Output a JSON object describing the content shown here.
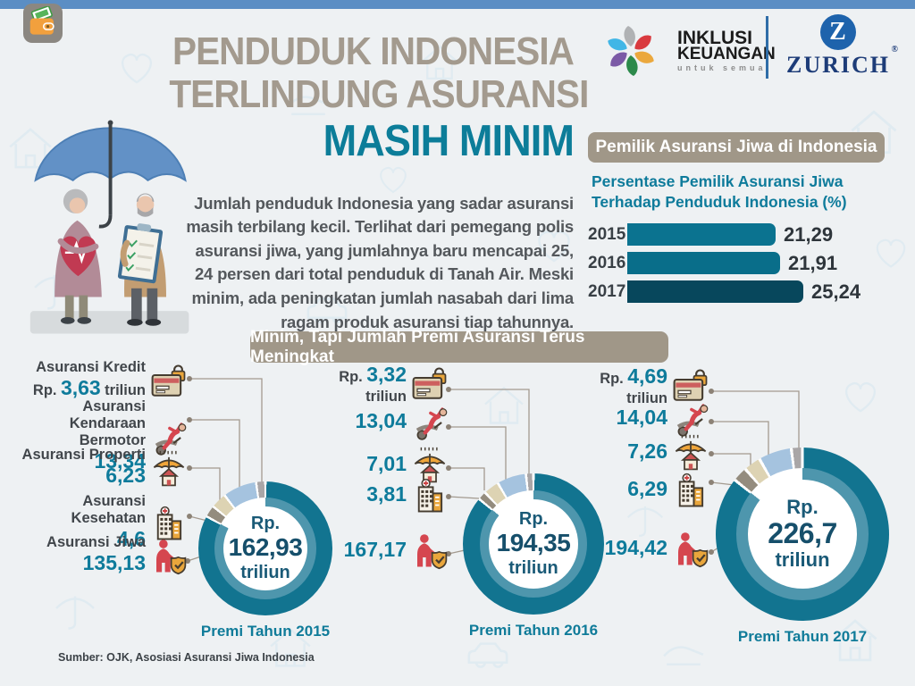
{
  "header": {
    "title_line1": "PENDUDUK INDONESIA",
    "title_line2": "TERLINDUNG ASURANSI",
    "title_line3": "MASIH MINIM",
    "intro": "Jumlah penduduk Indonesia yang sadar asuransi masih terbilang kecil. Terlihat dari pemegang polis asuransi jiwa, yang jumlahnya baru mencapai 25, 24 persen dari total penduduk di Tanah Air. Meski minim, ada peningkatan jumlah nasabah dari lima ragam produk asuransi tiap tahunnya.",
    "inklusi_logo": {
      "line1": "INKLUSI",
      "line2": "KEUANGAN",
      "tagline": "untuk semua"
    },
    "zurich_logo": {
      "letter": "Z",
      "wordmark": "ZURICH",
      "registered": "®"
    }
  },
  "ownership": {
    "banner": "Pemilik Asuransi Jiwa di Indonesia",
    "subtitle": "Persentase Pemilik Asuransi Jiwa Terhadap Penduduk Indonesia (%)",
    "rows": [
      {
        "year": "2015",
        "value_label": "21,29"
      },
      {
        "year": "2016",
        "value_label": "21,91"
      },
      {
        "year": "2017",
        "value_label": "25,24"
      }
    ]
  },
  "premium": {
    "banner": "Minim, Tapi Jumlah Premi Asuransi Terus Meningkat",
    "labels": {
      "kredit": "Asuransi Kredit",
      "kendaraan1": "Asuransi",
      "kendaraan2": "Kendaraan Bermotor",
      "properti": "Asuransi Properti",
      "kesehatan": "Asuransi Kesehatan",
      "jiwa": "Asuransi Jiwa"
    },
    "groups": [
      {
        "caption": "Premi Tahun 2015",
        "center_currency": "Rp.",
        "center_value": "162,93",
        "center_unit": "triliun",
        "items": [
          {
            "pre": "Rp.",
            "num": "3,63",
            "post": "triliun"
          },
          {
            "num": "13,34"
          },
          {
            "num": "6,23"
          },
          {
            "num": "4,6"
          },
          {
            "num": "135,13"
          }
        ]
      },
      {
        "caption": "Premi Tahun 2016",
        "center_currency": "Rp.",
        "center_value": "194,35",
        "center_unit": "triliun",
        "items": [
          {
            "pre": "Rp.",
            "num": "3,32",
            "post": "triliun"
          },
          {
            "num": "13,04"
          },
          {
            "num": "7,01"
          },
          {
            "num": "3,81"
          },
          {
            "num": "167,17"
          }
        ]
      },
      {
        "caption": "Premi Tahun 2017",
        "center_currency": "Rp.",
        "center_value": "226,7",
        "center_unit": "triliun",
        "items": [
          {
            "pre": "Rp.",
            "num": "4,69",
            "post": "triliun"
          },
          {
            "num": "14,04"
          },
          {
            "num": "7,26"
          },
          {
            "num": "6,29"
          },
          {
            "num": "194,42"
          }
        ]
      }
    ]
  },
  "source": "Sumber: OJK, Asosiasi Asuransi Jiwa Indonesia",
  "colors": {
    "topbar_blue": "#5b8ec4",
    "title_grey": "#a39a8e",
    "accent_teal": "#0c7d99",
    "banner_taupe": "#a09788",
    "bar_2015": "#0b7390",
    "bar_2016": "#096e8a",
    "bar_2017": "#07475c",
    "donut_main": "#127490",
    "donut_inner": "#4e96ad",
    "seg_kredit": "#a9a6a7",
    "seg_kendaraan": "#a5c3df",
    "seg_properti": "#ddd3b3",
    "seg_kesehatan": "#948c7e",
    "center_text": "#164f6b",
    "value_teal": "#0e7b9b"
  },
  "chart_data": [
    {
      "type": "bar",
      "orientation": "horizontal",
      "title": "Pemilik Asuransi Jiwa di Indonesia",
      "subtitle": "Persentase Pemilik Asuransi Jiwa Terhadap Penduduk Indonesia (%)",
      "categories": [
        "2015",
        "2016",
        "2017"
      ],
      "values": [
        21.29,
        21.91,
        25.24
      ],
      "value_labels": [
        "21,29",
        "21,91",
        "25,24"
      ],
      "unit": "%",
      "xlim": [
        0,
        30
      ],
      "grid": false,
      "legend": "none"
    },
    {
      "type": "pie",
      "subtype": "donut",
      "title": "Premi Tahun 2015",
      "center_label": "Rp. 162,93 triliun",
      "categories": [
        "Asuransi Kredit",
        "Asuransi Kendaraan Bermotor",
        "Asuransi Properti",
        "Asuransi Kesehatan",
        "Asuransi Jiwa"
      ],
      "values": [
        3.63,
        13.34,
        6.23,
        4.6,
        135.13
      ],
      "value_labels": [
        "Rp. 3,63 triliun",
        "13,34",
        "6,23",
        "4,6",
        "135,13"
      ],
      "unit": "triliun rupiah",
      "total": 162.93
    },
    {
      "type": "pie",
      "subtype": "donut",
      "title": "Premi Tahun 2016",
      "center_label": "Rp. 194,35 triliun",
      "categories": [
        "Asuransi Kredit",
        "Asuransi Kendaraan Bermotor",
        "Asuransi Properti",
        "Asuransi Kesehatan",
        "Asuransi Jiwa"
      ],
      "values": [
        3.32,
        13.04,
        7.01,
        3.81,
        167.17
      ],
      "value_labels": [
        "Rp. 3,32 triliun",
        "13,04",
        "7,01",
        "3,81",
        "167,17"
      ],
      "unit": "triliun rupiah",
      "total": 194.35
    },
    {
      "type": "pie",
      "subtype": "donut",
      "title": "Premi Tahun 2017",
      "center_label": "Rp. 226,7 triliun",
      "categories": [
        "Asuransi Kredit",
        "Asuransi Kendaraan Bermotor",
        "Asuransi Properti",
        "Asuransi Kesehatan",
        "Asuransi Jiwa"
      ],
      "values": [
        4.69,
        14.04,
        7.26,
        6.29,
        194.42
      ],
      "value_labels": [
        "Rp. 4,69 triliun",
        "14,04",
        "7,26",
        "6,29",
        "194,42"
      ],
      "unit": "triliun rupiah",
      "total": 226.7
    }
  ]
}
